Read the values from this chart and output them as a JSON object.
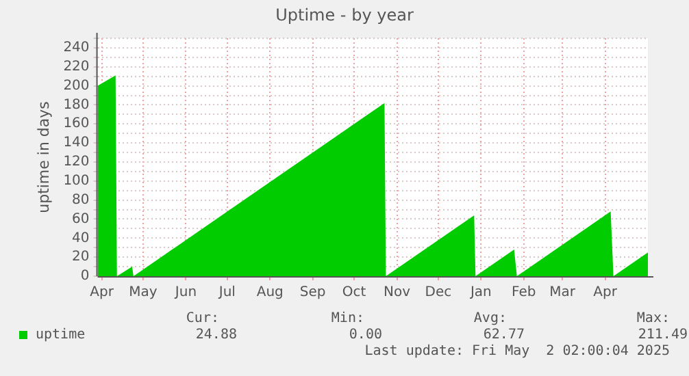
{
  "chart_data": {
    "type": "area",
    "title": "Uptime - by year",
    "ylabel": "uptime in days",
    "x": [
      "2024-03-29",
      "2024-04-11",
      "2024-04-12",
      "2024-04-23",
      "2024-04-24",
      "2024-10-23",
      "2024-10-24",
      "2024-12-27",
      "2024-12-28",
      "2025-01-25",
      "2025-01-27",
      "2025-04-05",
      "2025-04-07",
      "2025-05-02"
    ],
    "series": [
      {
        "name": "uptime",
        "color": "#00cc00",
        "values": [
          200,
          211,
          0,
          10,
          0,
          182,
          0,
          64,
          0,
          28,
          0,
          68,
          0,
          25
        ]
      }
    ],
    "xlim": [
      "2024-03-29",
      "2025-05-02"
    ],
    "xticks": [
      {
        "value": "2024-04-01",
        "label": "Apr"
      },
      {
        "value": "2024-05-01",
        "label": "May"
      },
      {
        "value": "2024-06-01",
        "label": "Jun"
      },
      {
        "value": "2024-07-01",
        "label": "Jul"
      },
      {
        "value": "2024-08-01",
        "label": "Aug"
      },
      {
        "value": "2024-09-01",
        "label": "Sep"
      },
      {
        "value": "2024-10-01",
        "label": "Oct"
      },
      {
        "value": "2024-11-01",
        "label": "Nov"
      },
      {
        "value": "2024-12-01",
        "label": "Dec"
      },
      {
        "value": "2025-01-01",
        "label": "Jan"
      },
      {
        "value": "2025-02-01",
        "label": "Feb"
      },
      {
        "value": "2025-03-01",
        "label": "Mar"
      },
      {
        "value": "2025-04-01",
        "label": "Apr"
      }
    ],
    "ylim": [
      0,
      250
    ],
    "yticks": [
      0,
      {
        "value": 10,
        "label": null
      },
      20,
      {
        "value": 30,
        "label": null
      },
      40,
      {
        "value": 50,
        "label": null
      },
      60,
      {
        "value": 70,
        "label": null
      },
      80,
      {
        "value": 90,
        "label": null
      },
      100,
      {
        "value": 110,
        "label": null
      },
      120,
      {
        "value": 130,
        "label": null
      },
      140,
      {
        "value": 150,
        "label": null
      },
      160,
      {
        "value": 170,
        "label": null
      },
      180,
      {
        "value": 190,
        "label": null
      },
      200,
      {
        "value": 210,
        "label": null
      },
      220,
      {
        "value": 230,
        "label": null
      },
      240,
      {
        "value": 250,
        "label": null
      }
    ],
    "grid": true,
    "legend": "bottom left",
    "marker": "none",
    "annotations": [
      "Cur:",
      "24.88",
      "Min:",
      "0.00",
      "Avg:",
      "62.77",
      "Max:",
      "211.49",
      "Last update: Fri May  2 02:00:04 2025"
    ]
  }
}
